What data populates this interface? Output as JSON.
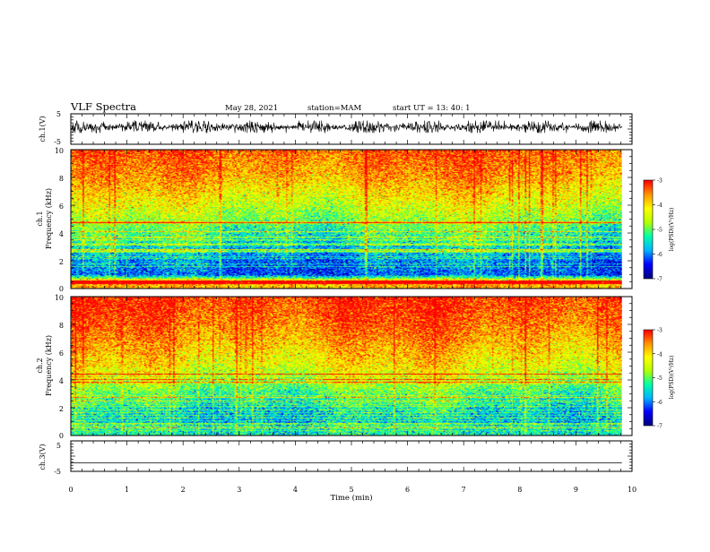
{
  "header": {
    "title": "VLF Spectra",
    "date": "May 28, 2021",
    "station": "station=MAM",
    "start": "start  UT =   13: 40: 1"
  },
  "colors": {
    "background": "#ffffff",
    "axes": "#000000",
    "waveform": "#000000",
    "colormap": [
      "#000080",
      "#0000ff",
      "#00b4ff",
      "#00ffaa",
      "#b4ff00",
      "#ffff00",
      "#ff9600",
      "#ff0000",
      "#ffffff"
    ]
  },
  "chart_data": [
    {
      "type": "line",
      "ylabel": "ch.1(V)",
      "ylim": [
        -5,
        5
      ],
      "y_ticks": [
        "5",
        "-5"
      ],
      "xlim": [
        0,
        10
      ],
      "signal": "broadband noise, envelope about -1 to 2.5 V",
      "grid": false
    },
    {
      "type": "heatmap",
      "ylabel_channel": "ch.1",
      "ylabel": "Frequency (kHz)",
      "ylim": [
        0,
        10
      ],
      "y_ticks": [
        "0",
        "2",
        "4",
        "6",
        "8",
        "10"
      ],
      "xlim": [
        0,
        10
      ],
      "data_end_min": 9.82,
      "colorbar": {
        "label": "log(PSD)(V²/Hz)",
        "range": [
          -7,
          -3
        ],
        "ticks": [
          "-3",
          "-4",
          "-5",
          "-6",
          "-7"
        ]
      },
      "approx_log_psd_by_freq": [
        {
          "freq_khz": 0.5,
          "log_psd": -3.8
        },
        {
          "freq_khz": 1,
          "log_psd": -6.2
        },
        {
          "freq_khz": 2,
          "log_psd": -6.0
        },
        {
          "freq_khz": 3,
          "log_psd": -5.6
        },
        {
          "freq_khz": 4,
          "log_psd": -5.2
        },
        {
          "freq_khz": 5,
          "log_psd": -4.8
        },
        {
          "freq_khz": 6,
          "log_psd": -4.4
        },
        {
          "freq_khz": 8,
          "log_psd": -3.7
        },
        {
          "freq_khz": 10,
          "log_psd": -3.3
        }
      ]
    },
    {
      "type": "heatmap",
      "ylabel_channel": "ch.2",
      "ylabel": "Frequency (kHz)",
      "ylim": [
        0,
        10
      ],
      "y_ticks": [
        "0",
        "2",
        "4",
        "6",
        "8",
        "10"
      ],
      "xlim": [
        0,
        10
      ],
      "data_end_min": 9.82,
      "colorbar": {
        "label": "log(PSD)(V²/Hz)",
        "range": [
          -7,
          -3
        ],
        "ticks": [
          "-3",
          "-4",
          "-5",
          "-6",
          "-7"
        ]
      },
      "approx_log_psd_by_freq": [
        {
          "freq_khz": 0.5,
          "log_psd": -5.4
        },
        {
          "freq_khz": 1,
          "log_psd": -5.7
        },
        {
          "freq_khz": 2,
          "log_psd": -5.5
        },
        {
          "freq_khz": 3,
          "log_psd": -5.1
        },
        {
          "freq_khz": 4,
          "log_psd": -4.6
        },
        {
          "freq_khz": 5,
          "log_psd": -4.2
        },
        {
          "freq_khz": 6,
          "log_psd": -3.9
        },
        {
          "freq_khz": 8,
          "log_psd": -3.4
        },
        {
          "freq_khz": 10,
          "log_psd": -3.1
        }
      ]
    },
    {
      "type": "line",
      "ylabel": "ch.3(V)",
      "ylim": [
        -5,
        5
      ],
      "y_ticks": [
        "5",
        "-5"
      ],
      "xlim": [
        0,
        10
      ],
      "constant_value_v": -2.2,
      "grid": false
    }
  ],
  "x_axis": {
    "label": "Time  (min)",
    "ticks": [
      "0",
      "1",
      "2",
      "3",
      "4",
      "5",
      "6",
      "7",
      "8",
      "9",
      "10"
    ]
  }
}
